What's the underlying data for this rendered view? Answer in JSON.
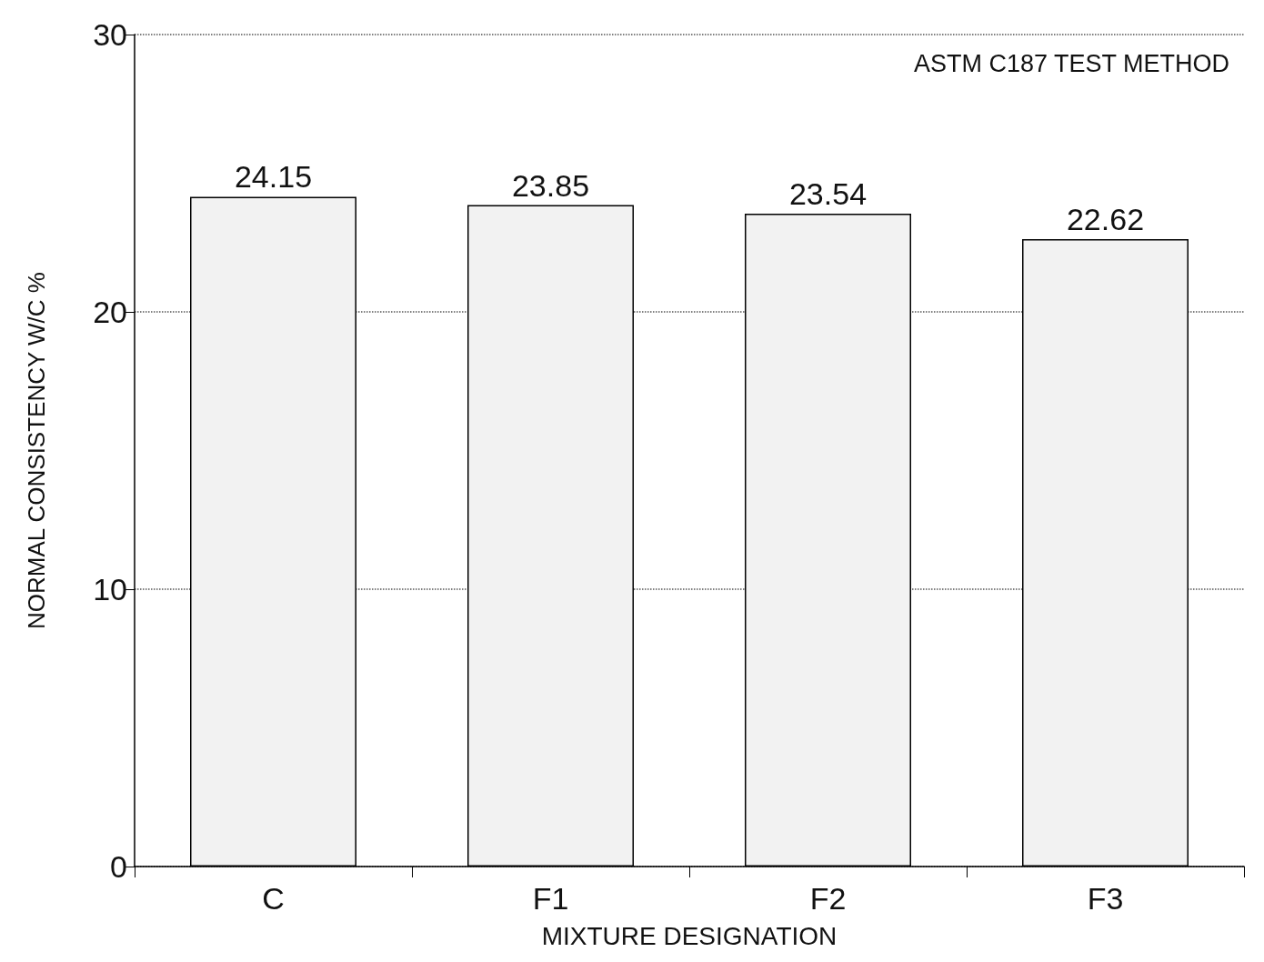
{
  "chart_data": {
    "type": "bar",
    "xlabel": "MIXTURE DESIGNATION",
    "ylabel": "NORMAL CONSISTENCY W/C %",
    "categories": [
      "C",
      "F1",
      "F2",
      "F3"
    ],
    "values": [
      24.15,
      23.85,
      23.54,
      22.62
    ],
    "color": "#f2f2f2",
    "ylim": [
      0,
      30
    ],
    "yticks": [
      0,
      10,
      20,
      30
    ],
    "grid": "y",
    "data_labels": true,
    "annotations": [
      "ASTM C187 TEST METHOD"
    ]
  }
}
